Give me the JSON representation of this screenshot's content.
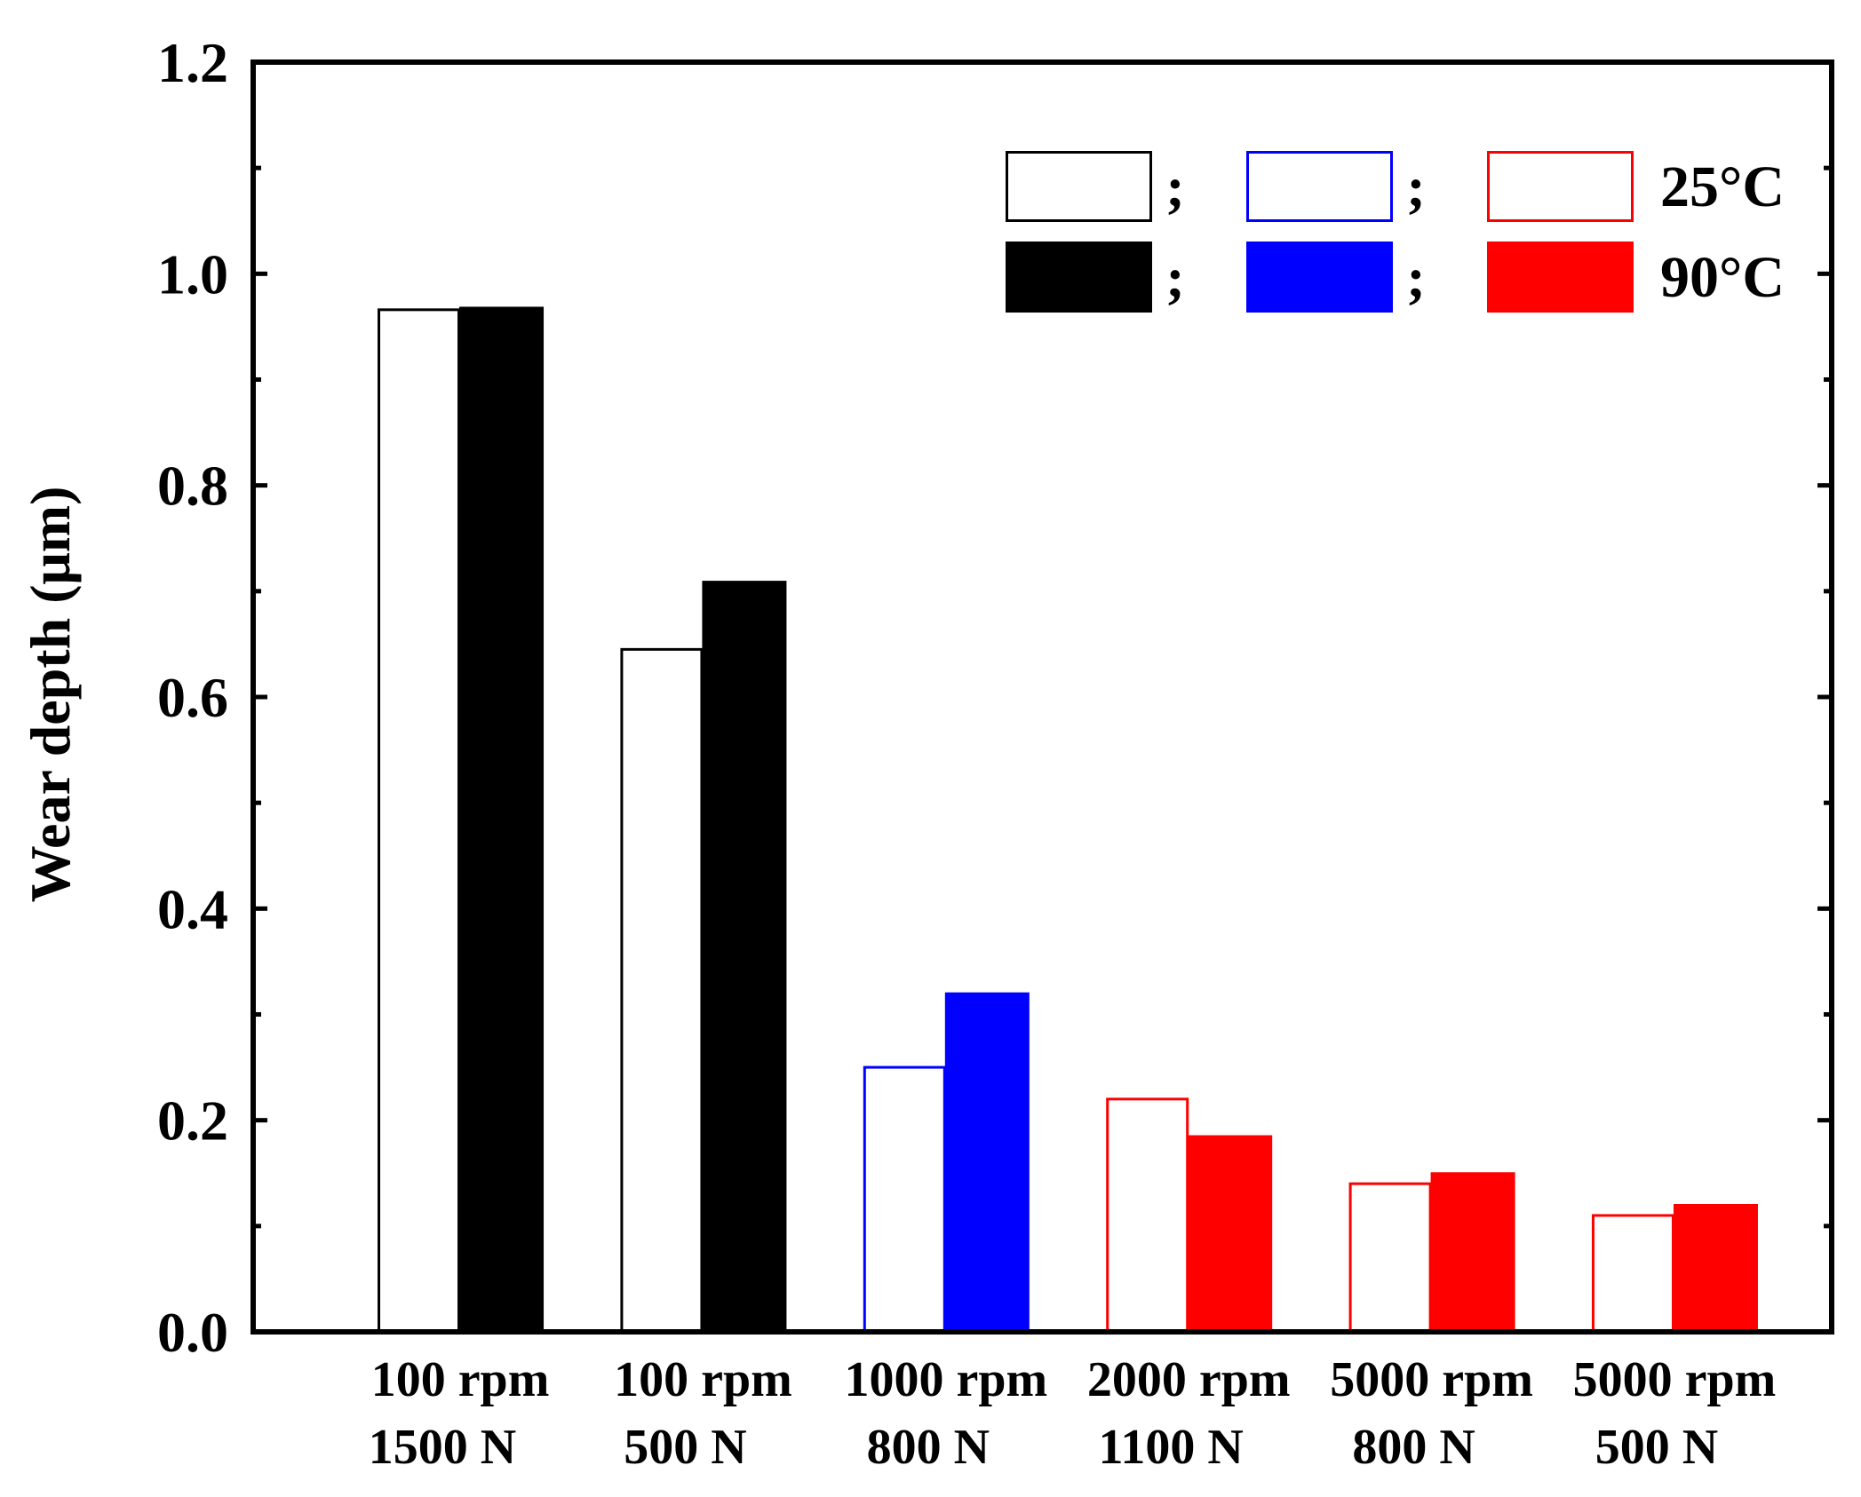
{
  "chart_data": {
    "type": "bar",
    "title": "",
    "xlabel": "",
    "ylabel": "Wear depth (μm)",
    "ylim": [
      0,
      1.2
    ],
    "yticks": [
      "0.0",
      "0.2",
      "0.4",
      "0.6",
      "0.8",
      "1.0",
      "1.2"
    ],
    "categories": [
      {
        "line1": "100 rpm",
        "line2": "1500 N",
        "color": "#000000"
      },
      {
        "line1": "100 rpm",
        "line2": "500 N",
        "color": "#000000"
      },
      {
        "line1": "1000 rpm",
        "line2": "800 N",
        "color": "#0000ff"
      },
      {
        "line1": "2000 rpm",
        "line2": "1100 N",
        "color": "#ff0000"
      },
      {
        "line1": "5000 rpm",
        "line2": "800 N",
        "color": "#ff0000"
      },
      {
        "line1": "5000 rpm",
        "line2": "500 N",
        "color": "#ff0000"
      }
    ],
    "series": [
      {
        "name": "25°C",
        "style": "outline",
        "values": [
          0.966,
          0.645,
          0.25,
          0.22,
          0.14,
          0.11
        ]
      },
      {
        "name": "90°C",
        "style": "filled",
        "values": [
          0.968,
          0.709,
          0.32,
          0.185,
          0.15,
          0.12
        ]
      }
    ],
    "legend": {
      "position": "top-right",
      "separator": ";",
      "colors": [
        "#000000",
        "#0000ff",
        "#ff0000"
      ],
      "rows": [
        {
          "label": "25°C",
          "style": "outline"
        },
        {
          "label": "90°C",
          "style": "filled"
        }
      ]
    }
  }
}
